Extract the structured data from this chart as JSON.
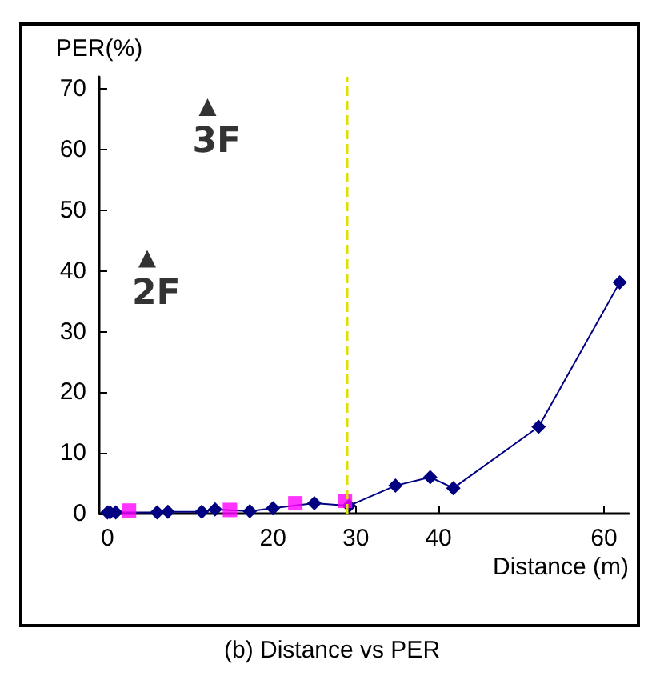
{
  "chart_data": {
    "type": "line",
    "title": "(b) Distance vs PER",
    "xlabel": "Distance (m)",
    "ylabel": "PER(%)",
    "xlim": [
      -1,
      63
    ],
    "ylim": [
      0,
      72
    ],
    "xticks": [
      0,
      20,
      30,
      40,
      60
    ],
    "yticks": [
      0,
      10,
      20,
      30,
      40,
      50,
      60,
      70
    ],
    "grid": false,
    "legend": false,
    "series": [
      {
        "color": "#000080",
        "marker": "diamond",
        "x": [
          0,
          0.3,
          1,
          6,
          7.3,
          11.4,
          13,
          17.2,
          20,
          25,
          29.2,
          34.8,
          39,
          41.8,
          52.1,
          61.9
        ],
        "values": [
          0.2,
          0.2,
          0.2,
          0.2,
          0.3,
          0.3,
          0.7,
          0.4,
          0.9,
          1.7,
          1.3,
          4.6,
          6,
          4.2,
          14.3,
          38.1
        ]
      },
      {
        "type": "scatter",
        "color": "#ff00ff",
        "marker": "square",
        "x": [
          2.6,
          14.8,
          22.7,
          28.7
        ],
        "values": [
          0.5,
          0.6,
          1.7,
          2.1
        ]
      },
      {
        "type": "scatter",
        "name": "3F",
        "color": "#000000",
        "marker": "triangle",
        "x": [
          12.1
        ],
        "values": [
          67
        ]
      },
      {
        "type": "scatter",
        "name": "2F",
        "color": "#000000",
        "marker": "triangle",
        "x": [
          4.8
        ],
        "values": [
          42
        ]
      }
    ],
    "ref_lines": [
      {
        "axis": "x",
        "value": 29,
        "color": "#e0e000",
        "line_style": "dashed"
      }
    ]
  }
}
